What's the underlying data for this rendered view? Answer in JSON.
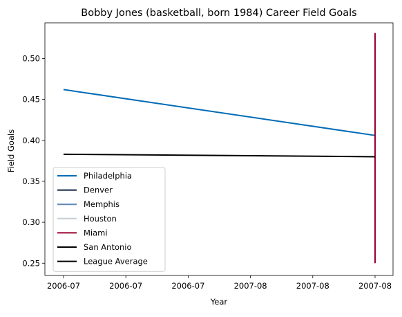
{
  "chart_data": {
    "type": "line",
    "title": "Bobby Jones (basketball, born 1984) Career Field Goals",
    "xlabel": "Year",
    "ylabel": "Field Goals",
    "x_tick_labels": [
      "2006-07",
      "2006-07",
      "2006-07",
      "2007-08",
      "2007-08",
      "2007-08"
    ],
    "ylim": [
      0.235,
      0.5435
    ],
    "yticks": [
      0.25,
      0.3,
      0.35,
      0.4,
      0.45,
      0.5
    ],
    "ytick_labels": [
      "0.25",
      "0.30",
      "0.35",
      "0.40",
      "0.45",
      "0.50"
    ],
    "grid": false,
    "legend_position": "lower-left",
    "series": [
      {
        "name": "Philadelphia",
        "color": "#006bb6",
        "points": [
          {
            "x": "2006-07",
            "y": 0.462
          },
          {
            "x": "2007-08",
            "y": 0.406
          }
        ]
      },
      {
        "name": "Denver",
        "color": "#0e2240",
        "points": []
      },
      {
        "name": "Memphis",
        "color": "#5d89b5",
        "points": []
      },
      {
        "name": "Houston",
        "color": "#c4ced4",
        "points": []
      },
      {
        "name": "Miami",
        "color": "#98002e",
        "points": [
          {
            "x": "2007-08",
            "y": 0.25
          },
          {
            "x": "2007-08",
            "y": 0.531
          }
        ]
      },
      {
        "name": "San Antonio",
        "color": "#000000",
        "points": []
      },
      {
        "name": "League Average",
        "color": "#000000",
        "points": [
          {
            "x": "2006-07",
            "y": 0.383
          },
          {
            "x": "2007-08",
            "y": 0.38
          }
        ]
      }
    ]
  }
}
